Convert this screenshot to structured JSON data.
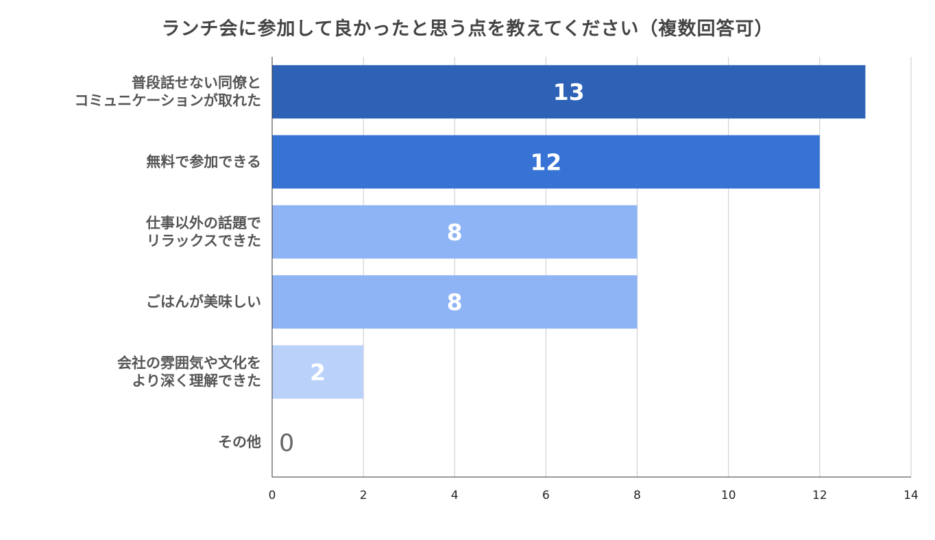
{
  "chart_data": {
    "type": "bar",
    "orientation": "horizontal",
    "title": "ランチ会に参加して良かったと思う点を教えてください（複数回答可）",
    "categories": [
      [
        "普段話せない同僚と",
        "コミュニケーションが取れた"
      ],
      [
        "無料で参加できる"
      ],
      [
        "仕事以外の話題で",
        "リラックスできた"
      ],
      [
        "ごはんが美味しい"
      ],
      [
        "会社の雰囲気や文化を",
        "より深く理解できた"
      ],
      [
        "その他"
      ]
    ],
    "values": [
      13,
      12,
      8,
      8,
      2,
      0
    ],
    "bar_colors": [
      "#2d62b7",
      "#3673d5",
      "#8fb4f5",
      "#8fb4f5",
      "#bad2f9",
      "#d9e6fc"
    ],
    "xlim": [
      0,
      14
    ],
    "xticks": [
      0,
      2,
      4,
      6,
      8,
      10,
      12,
      14
    ],
    "grid": true,
    "legend": "none",
    "data_labels": true
  }
}
